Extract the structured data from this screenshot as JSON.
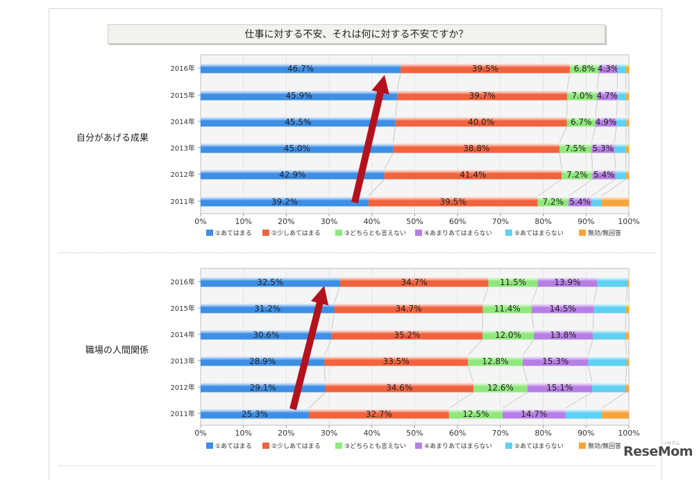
{
  "title": "仕事に対する不安、それは何に対する不安ですか？",
  "logo": "ReseMom",
  "logo_sub": "リセマム",
  "colors": {
    "c1": "#3d8ee6",
    "c2": "#f1623d",
    "c3": "#8fe87c",
    "c4": "#b77fe6",
    "c5": "#5fd0f2",
    "c6": "#f5a43a"
  },
  "legend": [
    "①あてはまる",
    "②少しあてはまる",
    "③どちらとも言えない",
    "④あまりあてはまらない",
    "⑤あてはまらない",
    "無効/無回答"
  ],
  "x_ticks": [
    "0%",
    "10%",
    "20%",
    "30%",
    "40%",
    "50%",
    "60%",
    "70%",
    "80%",
    "90%",
    "100%"
  ],
  "chart_data": [
    {
      "type": "bar",
      "stacked": true,
      "orientation": "horizontal",
      "group_label": "自分があげる成果",
      "categories": [
        "2016年",
        "2015年",
        "2014年",
        "2013年",
        "2012年",
        "2011年"
      ],
      "series": [
        {
          "name": "①あてはまる",
          "values": [
            46.7,
            45.9,
            45.5,
            45.0,
            42.9,
            39.2
          ]
        },
        {
          "name": "②少しあてはまる",
          "values": [
            39.5,
            39.7,
            40.0,
            38.8,
            41.4,
            39.5
          ]
        },
        {
          "name": "③どちらとも言えない",
          "values": [
            6.8,
            7.0,
            6.7,
            7.5,
            7.2,
            7.2
          ]
        },
        {
          "name": "④あまりあてはまらない",
          "values": [
            4.3,
            4.7,
            4.9,
            5.3,
            5.4,
            5.4
          ]
        },
        {
          "name": "⑤あてはまらない",
          "values": [
            2.0,
            2.0,
            2.3,
            2.7,
            2.4,
            2.3
          ]
        },
        {
          "name": "無効/無回答",
          "values": [
            0.7,
            0.7,
            0.6,
            0.7,
            0.7,
            6.4
          ]
        }
      ],
      "xlim": [
        0,
        100
      ]
    },
    {
      "type": "bar",
      "stacked": true,
      "orientation": "horizontal",
      "group_label": "職場の人間関係",
      "categories": [
        "2016年",
        "2015年",
        "2014年",
        "2013年",
        "2012年",
        "2011年"
      ],
      "series": [
        {
          "name": "①あてはまる",
          "values": [
            32.5,
            31.2,
            30.6,
            28.9,
            29.1,
            25.3
          ]
        },
        {
          "name": "②少しあてはまる",
          "values": [
            34.7,
            34.7,
            35.2,
            33.5,
            34.6,
            32.7
          ]
        },
        {
          "name": "③どちらとも言えない",
          "values": [
            11.5,
            11.4,
            12.0,
            12.8,
            12.6,
            12.5
          ]
        },
        {
          "name": "④あまりあてはまらない",
          "values": [
            13.9,
            14.5,
            13.8,
            15.3,
            15.1,
            14.7
          ]
        },
        {
          "name": "⑤あてはまらない",
          "values": [
            7.0,
            7.5,
            7.6,
            9.0,
            7.8,
            8.5
          ]
        },
        {
          "name": "無効/無回答",
          "values": [
            0.4,
            0.7,
            0.8,
            0.5,
            0.8,
            6.3
          ]
        }
      ],
      "xlim": [
        0,
        100
      ]
    }
  ]
}
